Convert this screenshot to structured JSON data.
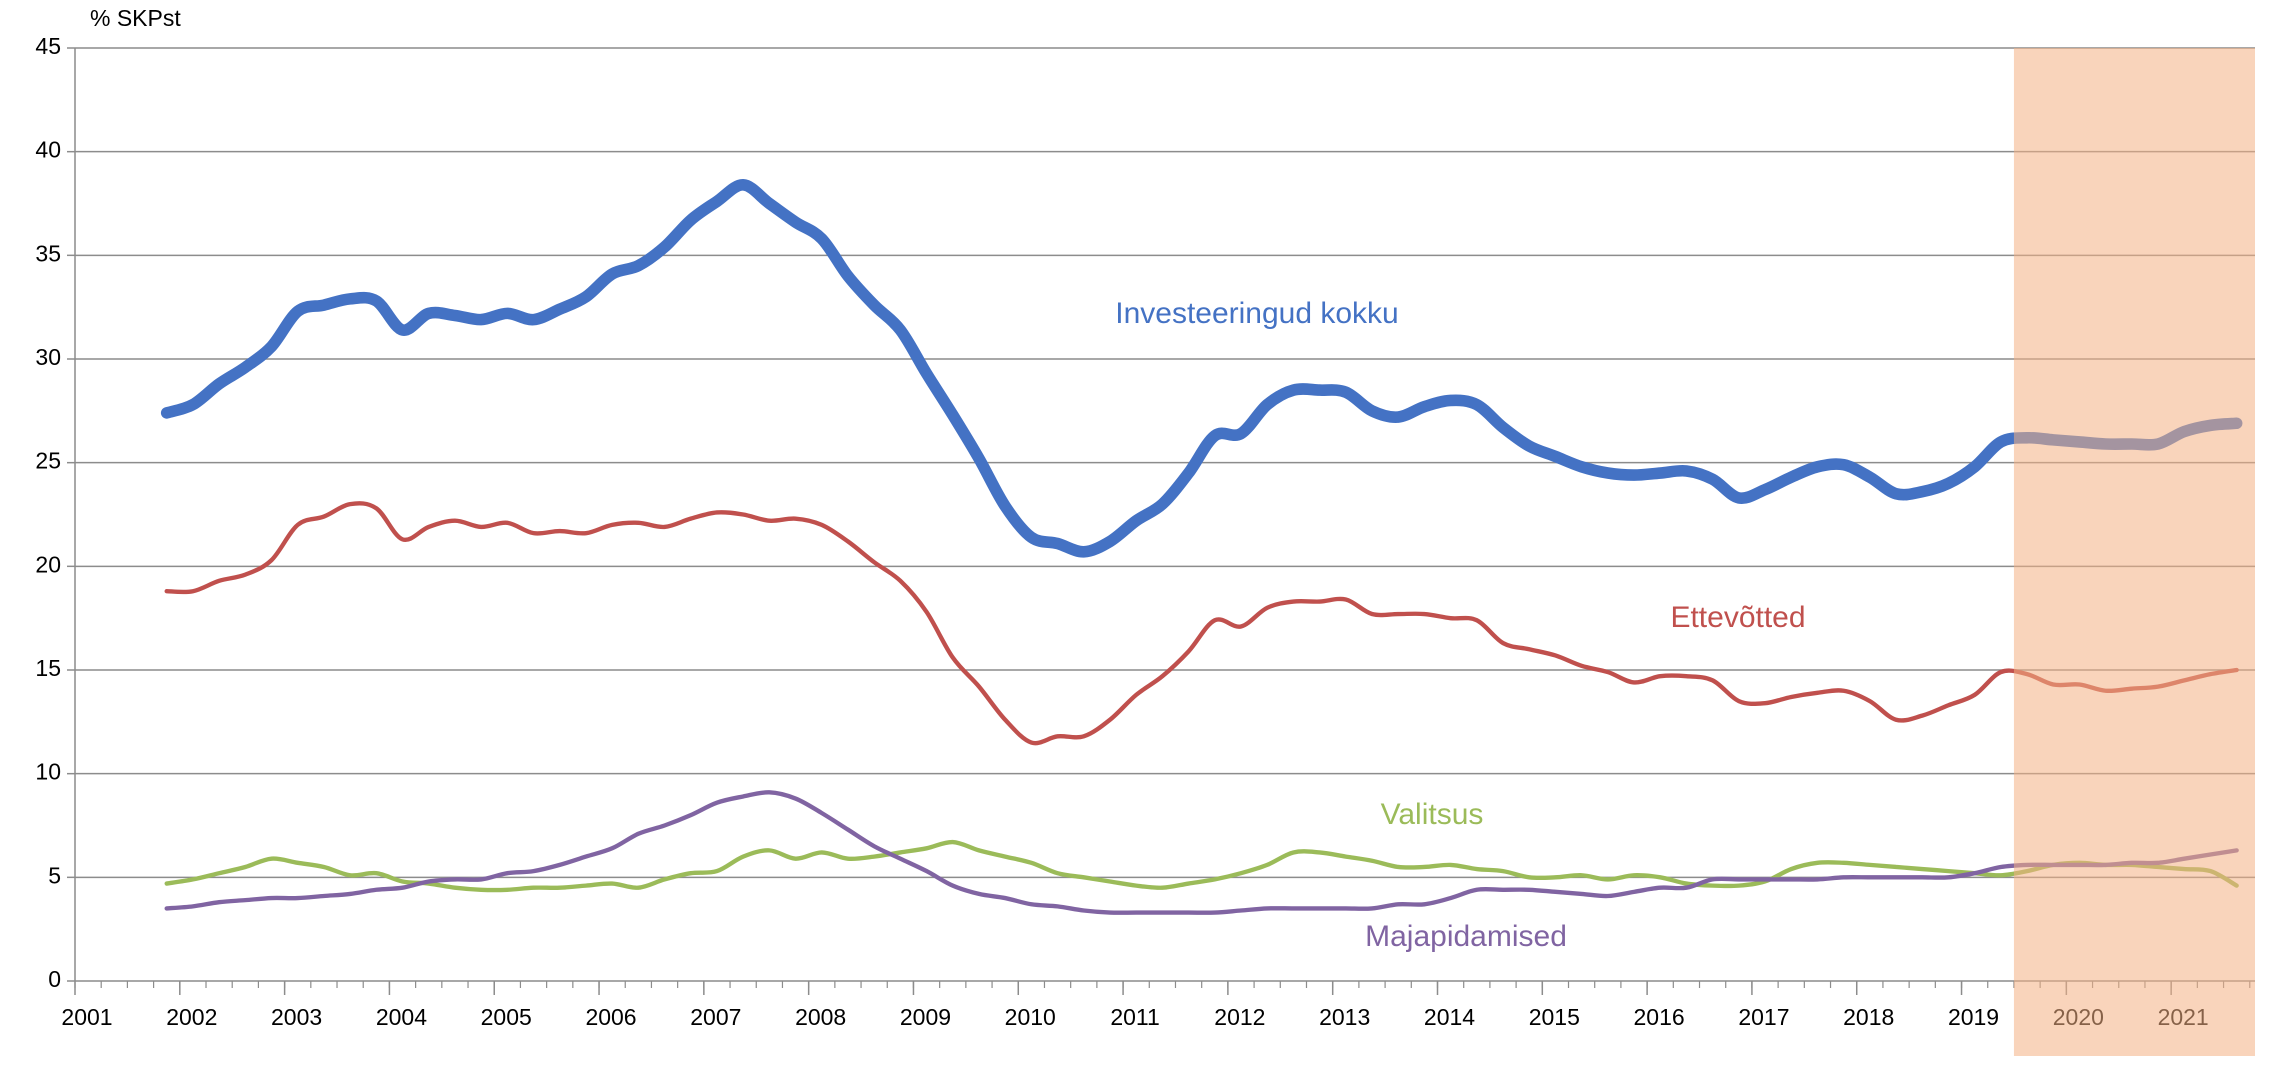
{
  "chart_data": {
    "type": "line",
    "y_axis_label": "% SKPst",
    "x": [
      2001.875,
      2002.125,
      2002.375,
      2002.625,
      2002.875,
      2003.125,
      2003.375,
      2003.625,
      2003.875,
      2004.125,
      2004.375,
      2004.625,
      2004.875,
      2005.125,
      2005.375,
      2005.625,
      2005.875,
      2006.125,
      2006.375,
      2006.625,
      2006.875,
      2007.125,
      2007.375,
      2007.625,
      2007.875,
      2008.125,
      2008.375,
      2008.625,
      2008.875,
      2009.125,
      2009.375,
      2009.625,
      2009.875,
      2010.125,
      2010.375,
      2010.625,
      2010.875,
      2011.125,
      2011.375,
      2011.625,
      2011.875,
      2012.125,
      2012.375,
      2012.625,
      2012.875,
      2013.125,
      2013.375,
      2013.625,
      2013.875,
      2014.125,
      2014.375,
      2014.625,
      2014.875,
      2015.125,
      2015.375,
      2015.625,
      2015.875,
      2016.125,
      2016.375,
      2016.625,
      2016.875,
      2017.125,
      2017.375,
      2017.625,
      2017.875,
      2018.125,
      2018.375,
      2018.625,
      2018.875,
      2019.125,
      2019.375,
      2019.625,
      2019.875,
      2020.125,
      2020.375,
      2020.625,
      2020.875,
      2021.125,
      2021.375,
      2021.625
    ],
    "series": [
      {
        "name": "Investeeringud kokku",
        "color": "#4472c4",
        "width": 8,
        "values": [
          27.4,
          27.8,
          28.8,
          29.6,
          30.6,
          32.3,
          32.6,
          32.9,
          32.8,
          31.4,
          32.2,
          32.1,
          31.9,
          32.2,
          31.9,
          32.4,
          33.0,
          34.1,
          34.5,
          35.4,
          36.7,
          37.6,
          38.4,
          37.5,
          36.6,
          35.8,
          34.0,
          32.6,
          31.4,
          29.3,
          27.3,
          25.2,
          22.9,
          21.4,
          21.1,
          20.7,
          21.2,
          22.2,
          23.0,
          24.5,
          26.3,
          26.4,
          27.8,
          28.5,
          28.5,
          28.4,
          27.5,
          27.2,
          27.7,
          28.0,
          27.8,
          26.7,
          25.8,
          25.3,
          24.8,
          24.5,
          24.4,
          24.5,
          24.6,
          24.2,
          23.3,
          23.7,
          24.3,
          24.8,
          24.9,
          24.3,
          23.5,
          23.6,
          24.0,
          24.8,
          26.0,
          26.2,
          26.1,
          26.0,
          25.9,
          25.9,
          25.9,
          26.5,
          26.8,
          26.9
        ]
      },
      {
        "name": "Ettevõtted",
        "color": "#c0504d",
        "width": 3,
        "values": [
          18.8,
          18.8,
          19.3,
          19.6,
          20.3,
          22.0,
          22.4,
          23.0,
          22.8,
          21.3,
          21.9,
          22.2,
          21.9,
          22.1,
          21.6,
          21.7,
          21.6,
          22.0,
          22.1,
          21.9,
          22.3,
          22.6,
          22.5,
          22.2,
          22.3,
          22.0,
          21.2,
          20.2,
          19.3,
          17.8,
          15.6,
          14.2,
          12.6,
          11.5,
          11.8,
          11.8,
          12.6,
          13.8,
          14.7,
          15.9,
          17.4,
          17.1,
          18.0,
          18.3,
          18.3,
          18.4,
          17.7,
          17.7,
          17.7,
          17.5,
          17.4,
          16.3,
          16.0,
          15.7,
          15.2,
          14.9,
          14.4,
          14.7,
          14.7,
          14.5,
          13.5,
          13.4,
          13.7,
          13.9,
          14.0,
          13.5,
          12.6,
          12.8,
          13.3,
          13.8,
          14.9,
          14.8,
          14.3,
          14.3,
          14.0,
          14.1,
          14.2,
          14.5,
          14.8,
          15.0
        ]
      },
      {
        "name": "Valitsus",
        "color": "#9bbb59",
        "width": 3,
        "values": [
          4.7,
          4.9,
          5.2,
          5.5,
          5.9,
          5.7,
          5.5,
          5.1,
          5.2,
          4.8,
          4.7,
          4.5,
          4.4,
          4.4,
          4.5,
          4.5,
          4.6,
          4.7,
          4.5,
          4.9,
          5.2,
          5.3,
          6.0,
          6.3,
          5.9,
          6.2,
          5.9,
          6.0,
          6.2,
          6.4,
          6.7,
          6.3,
          6.0,
          5.7,
          5.2,
          5.0,
          4.8,
          4.6,
          4.5,
          4.7,
          4.9,
          5.2,
          5.6,
          6.2,
          6.2,
          6.0,
          5.8,
          5.5,
          5.5,
          5.6,
          5.4,
          5.3,
          5.0,
          5.0,
          5.1,
          4.9,
          5.1,
          5.0,
          4.7,
          4.6,
          4.6,
          4.8,
          5.4,
          5.7,
          5.7,
          5.6,
          5.5,
          5.4,
          5.3,
          5.2,
          5.1,
          5.3,
          5.6,
          5.7,
          5.6,
          5.6,
          5.5,
          5.4,
          5.3,
          4.6
        ]
      },
      {
        "name": "Majapidamised",
        "color": "#8064a2",
        "width": 3,
        "values": [
          3.5,
          3.6,
          3.8,
          3.9,
          4.0,
          4.0,
          4.1,
          4.2,
          4.4,
          4.5,
          4.8,
          4.9,
          4.9,
          5.2,
          5.3,
          5.6,
          6.0,
          6.4,
          7.1,
          7.5,
          8.0,
          8.6,
          8.9,
          9.1,
          8.8,
          8.1,
          7.3,
          6.5,
          5.9,
          5.3,
          4.6,
          4.2,
          4.0,
          3.7,
          3.6,
          3.4,
          3.3,
          3.3,
          3.3,
          3.3,
          3.3,
          3.4,
          3.5,
          3.5,
          3.5,
          3.5,
          3.5,
          3.7,
          3.7,
          4.0,
          4.4,
          4.4,
          4.4,
          4.3,
          4.2,
          4.1,
          4.3,
          4.5,
          4.5,
          4.9,
          4.9,
          4.9,
          4.9,
          4.9,
          5.0,
          5.0,
          5.0,
          5.0,
          5.0,
          5.2,
          5.5,
          5.6,
          5.6,
          5.6,
          5.6,
          5.7,
          5.7,
          5.9,
          6.1,
          6.3
        ]
      }
    ],
    "xlim": [
      2001,
      2021.8
    ],
    "xticks": [
      2001,
      2002,
      2003,
      2004,
      2005,
      2006,
      2007,
      2008,
      2009,
      2010,
      2011,
      2012,
      2013,
      2014,
      2015,
      2016,
      2017,
      2018,
      2019,
      2020,
      2021
    ],
    "ylim": [
      0,
      45
    ],
    "yticks": [
      0,
      5,
      10,
      15,
      20,
      25,
      30,
      35,
      40,
      45
    ],
    "grid": true,
    "shaded_region": [
      2019.5,
      2021.8
    ],
    "shaded_color": "#f4b183"
  }
}
